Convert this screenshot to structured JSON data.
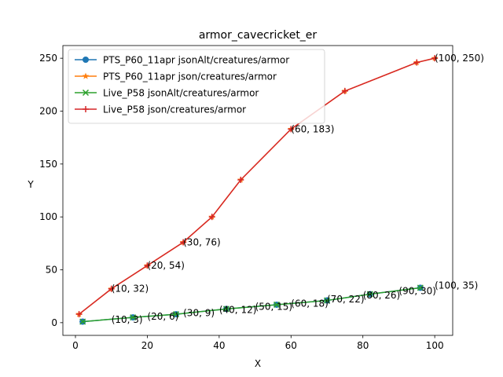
{
  "chart_data": {
    "type": "line",
    "title": "armor_cavecricket_er",
    "xlabel": "X",
    "ylabel": "Y",
    "xlim": [
      -3.5,
      105
    ],
    "ylim": [
      -12,
      262
    ],
    "xticks": [
      0,
      20,
      40,
      60,
      80,
      100
    ],
    "yticks": [
      0,
      50,
      100,
      150,
      200,
      250
    ],
    "grid": false,
    "legend_position": "top-left",
    "series": [
      {
        "name": "PTS_P60_11apr jsonAlt/creatures/armor",
        "color": "#1f77b4",
        "marker": "circle",
        "x": [
          2,
          16,
          28,
          42,
          56,
          70,
          82,
          96
        ],
        "y": [
          1,
          5,
          8,
          13,
          17,
          21,
          27,
          33
        ]
      },
      {
        "name": "PTS_P60_11apr json/creatures/armor",
        "color": "#ff7f0e",
        "marker": "star",
        "x": [
          1,
          10,
          20,
          30,
          38,
          46,
          60,
          75,
          95,
          100
        ],
        "y": [
          8,
          32,
          54,
          76,
          100,
          135,
          183,
          219,
          246,
          250
        ]
      },
      {
        "name": "Live_P58 jsonAlt/creatures/armor",
        "color": "#2ca02c",
        "marker": "x",
        "x": [
          2,
          16,
          28,
          42,
          56,
          70,
          82,
          96
        ],
        "y": [
          1,
          5,
          8,
          13,
          17,
          21,
          27,
          33
        ]
      },
      {
        "name": "Live_P58 json/creatures/armor",
        "color": "#d62728",
        "marker": "plus",
        "x": [
          1,
          10,
          20,
          30,
          38,
          46,
          60,
          75,
          95,
          100
        ],
        "y": [
          8,
          32,
          54,
          76,
          100,
          135,
          183,
          219,
          246,
          250
        ]
      }
    ],
    "annotations": [
      {
        "text": "(10, 32)",
        "x": 10,
        "y": 32
      },
      {
        "text": "(20, 54)",
        "x": 20,
        "y": 54
      },
      {
        "text": "(30, 76)",
        "x": 30,
        "y": 76
      },
      {
        "text": "(60, 183)",
        "x": 60,
        "y": 183
      },
      {
        "text": "(100, 250)",
        "x": 100,
        "y": 250
      },
      {
        "text": "(10, 3)",
        "x": 10,
        "y": 3
      },
      {
        "text": "(20, 6)",
        "x": 20,
        "y": 6
      },
      {
        "text": "(30, 9)",
        "x": 30,
        "y": 9
      },
      {
        "text": "(40, 12)",
        "x": 40,
        "y": 12
      },
      {
        "text": "(50, 15)",
        "x": 50,
        "y": 15
      },
      {
        "text": "(60, 18)",
        "x": 60,
        "y": 18
      },
      {
        "text": "(70, 22)",
        "x": 70,
        "y": 22
      },
      {
        "text": "(80, 26)",
        "x": 80,
        "y": 26
      },
      {
        "text": "(90, 30)",
        "x": 90,
        "y": 30
      },
      {
        "text": "(100, 35)",
        "x": 100,
        "y": 35
      }
    ]
  }
}
